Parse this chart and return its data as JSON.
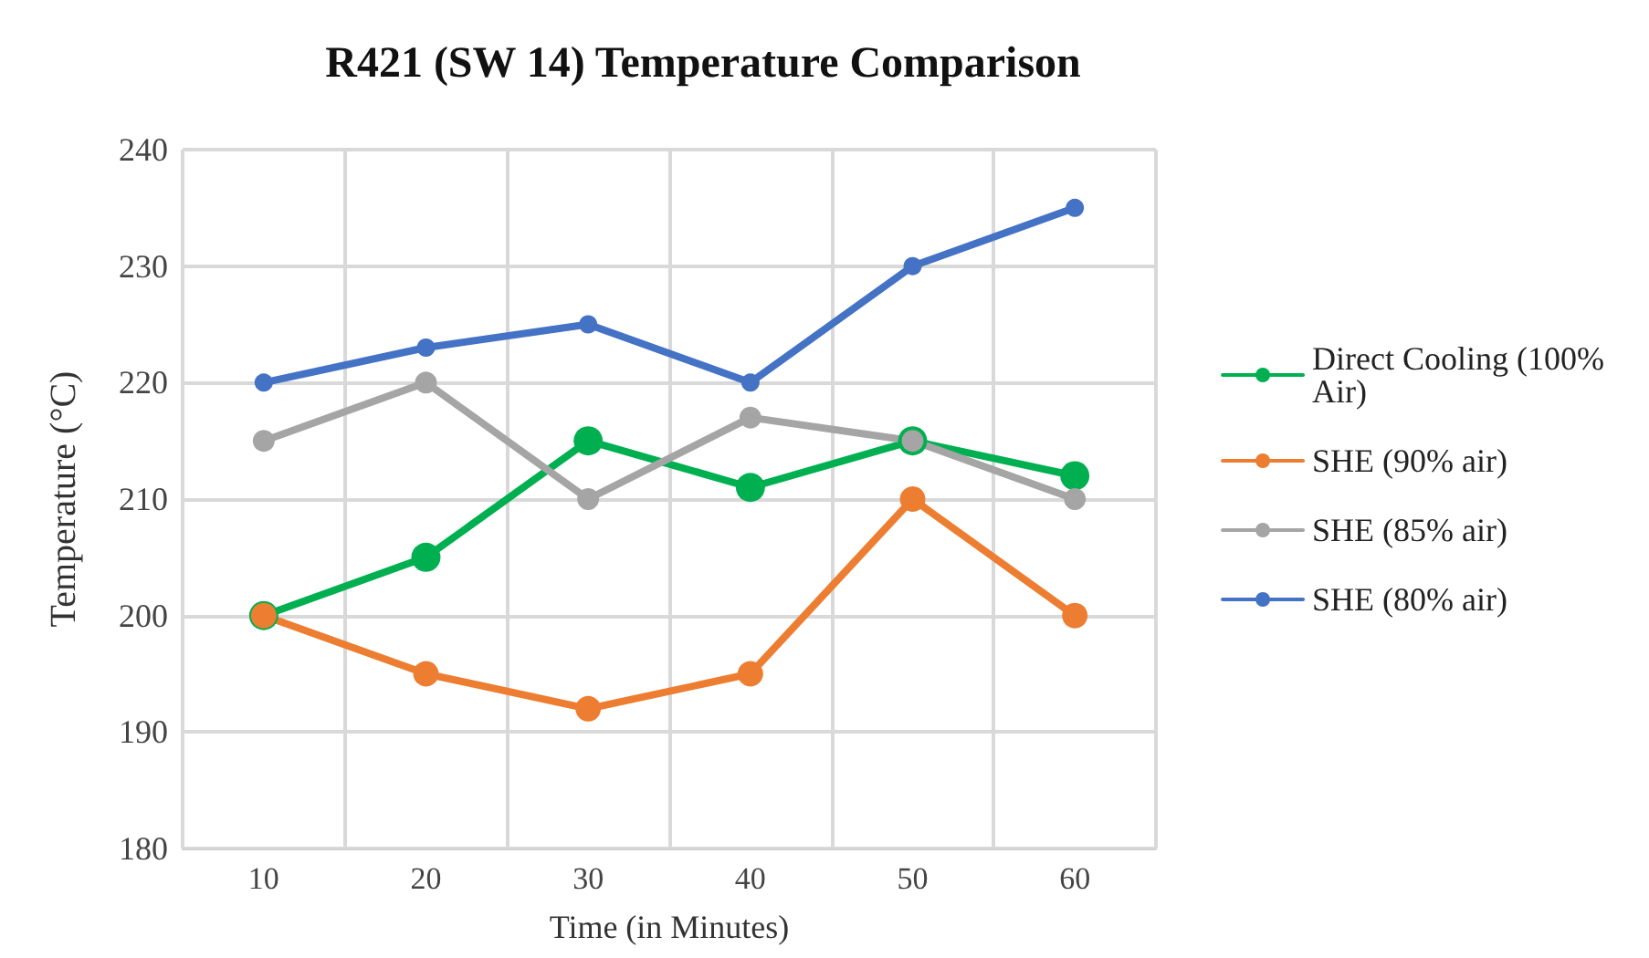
{
  "chart_data": {
    "type": "line",
    "title": "R421 (SW 14) Temperature Comparison",
    "xlabel": "Time (in Minutes)",
    "ylabel": "Temperature (°C)",
    "categories": [
      "10",
      "20",
      "30",
      "40",
      "50",
      "60"
    ],
    "series": [
      {
        "name": "Direct Cooling (100% Air)",
        "color": "#00b050",
        "values": [
          200,
          205,
          215,
          211,
          215,
          212
        ]
      },
      {
        "name": "SHE (90% air)",
        "color": "#ed7d31",
        "values": [
          200,
          195,
          192,
          195,
          210,
          200
        ]
      },
      {
        "name": "SHE (85% air)",
        "color": "#a5a5a5",
        "values": [
          215,
          220,
          210,
          217,
          215,
          210
        ]
      },
      {
        "name": "SHE (80% air)",
        "color": "#4472c4",
        "values": [
          220,
          223,
          225,
          220,
          230,
          235
        ]
      }
    ],
    "ylim": [
      180,
      240
    ],
    "yticks": [
      180,
      190,
      200,
      210,
      220,
      230,
      240
    ],
    "grid": true,
    "legend": "right",
    "marker": "circle",
    "line_style": "solid"
  }
}
